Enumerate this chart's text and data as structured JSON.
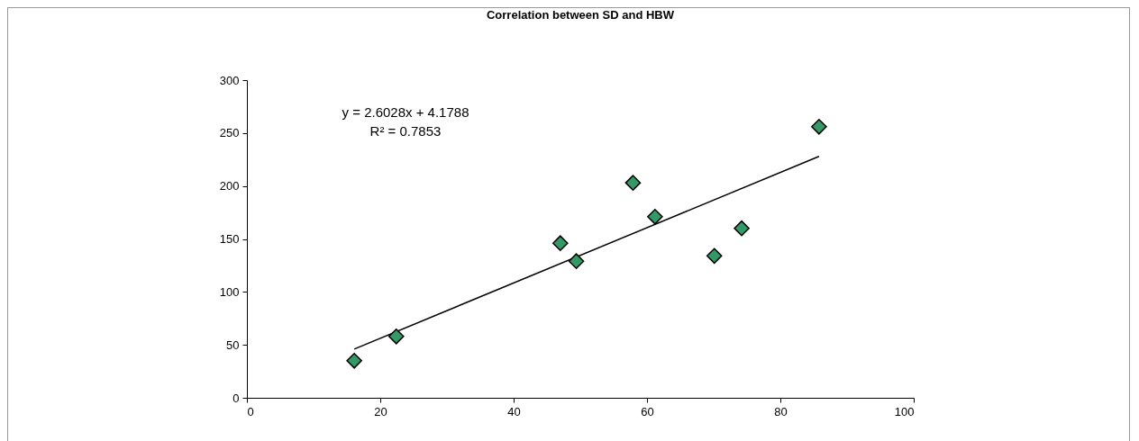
{
  "chart_data": {
    "type": "scatter",
    "title": "Correlation between SD and HBW",
    "x": [
      16.1,
      22.4,
      47.0,
      49.4,
      57.9,
      61.2,
      70.1,
      74.2,
      85.8
    ],
    "series": [
      {
        "color": "#339966",
        "values": [
          35,
          58,
          146,
          129,
          203,
          171,
          134,
          160,
          256
        ]
      },
      {
        "type": "line",
        "color": "#000000",
        "marker": "none",
        "x": [
          16.1,
          85.8
        ],
        "values": [
          46,
          228
        ]
      }
    ],
    "marker": "diamond",
    "xlim": [
      0,
      100
    ],
    "xticks": [
      0,
      20,
      40,
      60,
      80,
      100
    ],
    "ylim": [
      0,
      300
    ],
    "yticks": [
      0,
      50,
      100,
      150,
      200,
      250,
      300
    ],
    "grid": false,
    "legend": false,
    "annotations": [
      "y = 2.6028x + 4.1788",
      "R² = 0.7853"
    ]
  }
}
